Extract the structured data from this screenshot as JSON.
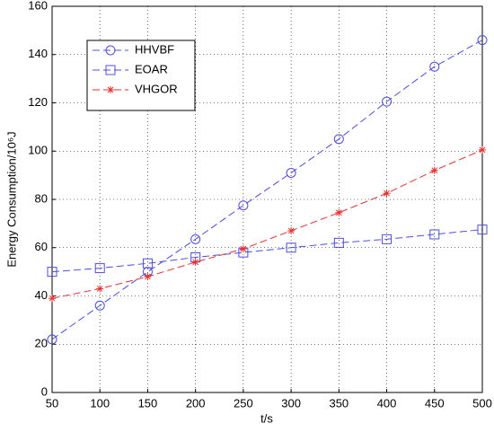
{
  "chart_data": {
    "type": "line",
    "x_label": "t/s",
    "y_label": "Energy Consumption/10⁶J",
    "x": [
      50,
      100,
      150,
      200,
      250,
      300,
      350,
      400,
      450,
      500
    ],
    "series": [
      {
        "name": "HHVBF",
        "color": "#4c4ce6",
        "marker": "circle",
        "values": [
          22,
          36,
          50,
          63.5,
          77.5,
          91,
          105,
          120.5,
          135,
          146
        ]
      },
      {
        "name": "EOAR",
        "color": "#4c4ce6",
        "marker": "square",
        "values": [
          50,
          51.5,
          53.5,
          56,
          58,
          60,
          62,
          63.5,
          65.5,
          67.5
        ]
      },
      {
        "name": "VHGOR",
        "color": "#e63030",
        "marker": "asterisk",
        "values": [
          39,
          43,
          48,
          54,
          59.5,
          67,
          74.5,
          82.5,
          92,
          100.5
        ]
      }
    ],
    "xlim": [
      50,
      500
    ],
    "xticks": [
      50,
      100,
      150,
      200,
      250,
      300,
      350,
      400,
      450,
      500
    ],
    "ylim": [
      0,
      160
    ],
    "yticks": [
      0,
      20,
      40,
      60,
      80,
      100,
      120,
      140,
      160
    ],
    "grid": true,
    "legend": "upper left"
  }
}
